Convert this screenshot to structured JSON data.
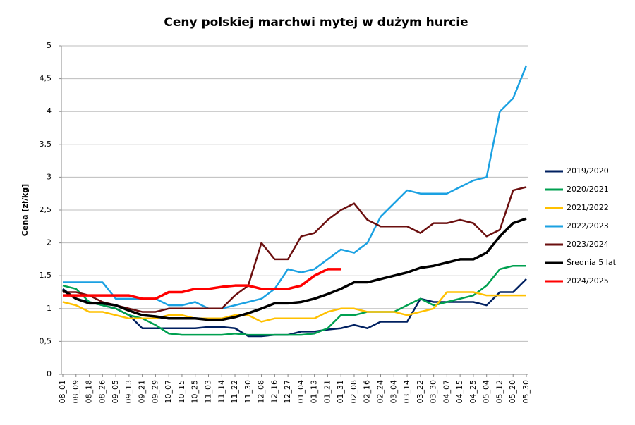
{
  "chart_data": {
    "type": "line",
    "title": "Ceny polskiej  marchwi mytej w dużym hurcie",
    "y_label": "Cena [zł/kg]",
    "categories": [
      "08_01",
      "08_09",
      "08_18",
      "08_26",
      "09_05",
      "09_13",
      "09_21",
      "09_29",
      "10_07",
      "10_15",
      "10_25",
      "11_03",
      "11_14",
      "11_22",
      "11_30",
      "12_08",
      "12_16",
      "12_27",
      "01_04",
      "01_13",
      "01_21",
      "01_31",
      "02_08",
      "02_16",
      "02_24",
      "03_04",
      "03_14",
      "03_22",
      "03_30",
      "04_07",
      "04_15",
      "04_25",
      "05_04",
      "05_12",
      "05_20",
      "05_30"
    ],
    "ylim": [
      0,
      5
    ],
    "yticks": [
      0,
      {
        "value": 0.5,
        "label": "0,5"
      },
      1,
      {
        "value": 1.5,
        "label": "1,5"
      },
      2,
      {
        "value": 2.5,
        "label": "2,5"
      },
      3,
      {
        "value": 3.5,
        "label": "3,5"
      },
      4,
      {
        "value": 4.5,
        "label": "4,5"
      },
      5
    ],
    "grid": true,
    "legend": "right",
    "series": [
      {
        "name": "2019/2020",
        "color": "#002060",
        "values": [
          1.3,
          1.15,
          1.1,
          1.05,
          1.0,
          0.9,
          0.7,
          0.7,
          0.7,
          0.7,
          0.7,
          0.72,
          0.72,
          0.7,
          0.58,
          0.58,
          0.6,
          0.6,
          0.65,
          0.65,
          0.68,
          0.7,
          0.75,
          0.7,
          0.8,
          0.8,
          0.8,
          1.15,
          1.1,
          1.1,
          1.1,
          1.1,
          1.05,
          1.25,
          1.25,
          1.45
        ]
      },
      {
        "name": "2020/2021",
        "color": "#00a050",
        "values": [
          1.35,
          1.3,
          1.1,
          1.05,
          1.0,
          0.9,
          0.85,
          0.75,
          0.62,
          0.6,
          0.6,
          0.6,
          0.6,
          0.62,
          0.6,
          0.6,
          0.6,
          0.6,
          0.6,
          0.62,
          0.7,
          0.9,
          0.9,
          0.95,
          0.95,
          0.95,
          1.05,
          1.15,
          1.05,
          1.1,
          1.15,
          1.2,
          1.35,
          1.6,
          1.65,
          1.65
        ]
      },
      {
        "name": "2021/2022",
        "color": "#ffc000",
        "values": [
          1.1,
          1.05,
          0.95,
          0.95,
          0.9,
          0.85,
          0.85,
          0.85,
          0.9,
          0.9,
          0.85,
          0.85,
          0.85,
          0.9,
          0.9,
          0.8,
          0.85,
          0.85,
          0.85,
          0.85,
          0.95,
          1.0,
          1.0,
          0.95,
          0.95,
          0.95,
          0.9,
          0.95,
          1.0,
          1.25,
          1.25,
          1.25,
          1.2,
          1.2,
          1.2,
          1.2
        ]
      },
      {
        "name": "2022/2023",
        "color": "#1ba1e2",
        "values": [
          1.4,
          1.4,
          1.4,
          1.4,
          1.15,
          1.15,
          1.15,
          1.15,
          1.05,
          1.05,
          1.1,
          1.0,
          1.0,
          1.05,
          1.1,
          1.15,
          1.3,
          1.6,
          1.55,
          1.6,
          1.75,
          1.9,
          1.85,
          2.0,
          2.4,
          2.6,
          2.8,
          2.75,
          2.75,
          2.75,
          2.85,
          2.95,
          3.0,
          4.0,
          4.2,
          4.7
        ]
      },
      {
        "name": "2023/2024",
        "color": "#6b0f0f",
        "values": [
          1.25,
          1.25,
          1.2,
          1.1,
          1.05,
          1.0,
          0.95,
          0.95,
          1.0,
          1.0,
          1.0,
          1.0,
          1.0,
          1.2,
          1.35,
          2.0,
          1.75,
          1.75,
          2.1,
          2.15,
          2.35,
          2.5,
          2.6,
          2.35,
          2.25,
          2.25,
          2.25,
          2.15,
          2.3,
          2.3,
          2.35,
          2.3,
          2.1,
          2.2,
          2.8,
          2.85
        ]
      },
      {
        "name": "Średnia 5 lat",
        "color": "#000000",
        "values": [
          1.28,
          1.15,
          1.08,
          1.08,
          1.05,
          0.97,
          0.9,
          0.88,
          0.85,
          0.85,
          0.85,
          0.83,
          0.83,
          0.87,
          0.93,
          1.0,
          1.08,
          1.08,
          1.1,
          1.15,
          1.22,
          1.3,
          1.4,
          1.4,
          1.45,
          1.5,
          1.55,
          1.62,
          1.65,
          1.7,
          1.75,
          1.75,
          1.85,
          2.1,
          2.3,
          2.37
        ]
      },
      {
        "name": "2024/2025",
        "color": "#ff0000",
        "values": [
          1.2,
          1.2,
          1.2,
          1.2,
          1.2,
          1.2,
          1.15,
          1.15,
          1.25,
          1.25,
          1.3,
          1.3,
          1.33,
          1.35,
          1.35,
          1.3,
          1.3,
          1.3,
          1.35,
          1.5,
          1.6,
          1.6,
          null,
          null,
          null,
          null,
          null,
          null,
          null,
          null,
          null,
          null,
          null,
          null,
          null,
          null
        ]
      }
    ]
  }
}
